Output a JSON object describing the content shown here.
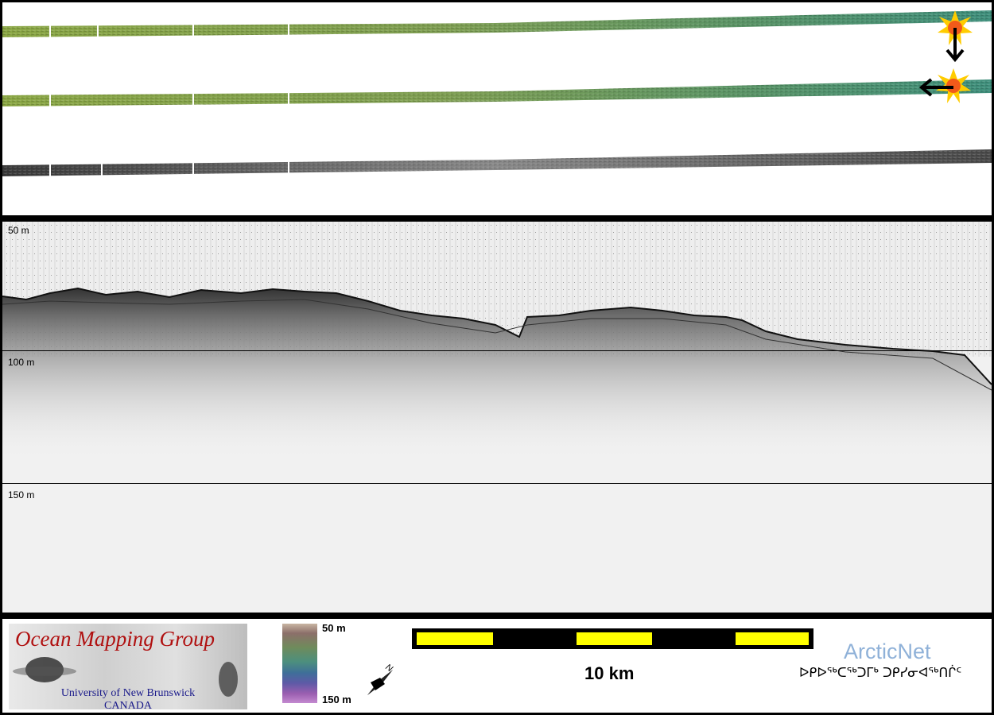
{
  "profile": {
    "depth_labels": [
      "50 m",
      "100 m",
      "150 m"
    ]
  },
  "legend": {
    "organization": {
      "title": "Ocean Mapping Group",
      "university": "University of New Brunswick",
      "country": "CANADA"
    },
    "colorbar": {
      "top_label": "50 m",
      "bottom_label": "150 m"
    },
    "north_arrow": {
      "label": "N"
    },
    "scale_bar": {
      "label": "10 km"
    },
    "partner": {
      "name": "ArcticNet",
      "inuktitut": "ᐅᑭᐅᖅᑕᖅᑐᒥᒃ ᑐᑭᓯᓂᐊᖅᑎᒌᑦ"
    }
  },
  "colors": {
    "frame": "#000000",
    "strip_green_start": "#8aa644",
    "strip_green_end": "#3f8f7c",
    "strip_gray": "#555555",
    "scale_bar_fill": "#ffff00",
    "brand_red": "#b01010",
    "brand_blue": "#1a1a8a",
    "arcticnet_blue": "#8fb1d8",
    "marker": "#ffcc00"
  },
  "icons": [
    "sun-marker-icon",
    "down-arrow-icon",
    "left-arrow-icon",
    "north-arrow-icon"
  ]
}
